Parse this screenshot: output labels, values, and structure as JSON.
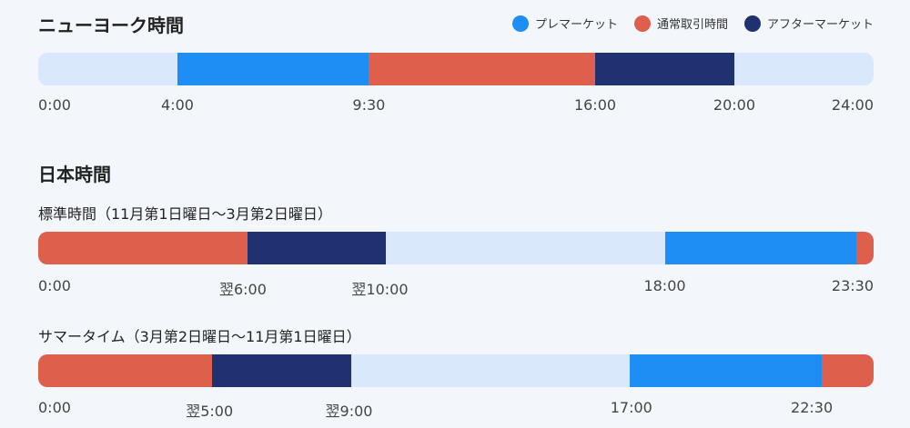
{
  "colors": {
    "pre": "#1e8ef5",
    "regular": "#de5f4b",
    "after": "#1f3170",
    "idle": "#d9e9fb"
  },
  "legend": [
    {
      "key": "pre",
      "label": "プレマーケット"
    },
    {
      "key": "regular",
      "label": "通常取引時間"
    },
    {
      "key": "after",
      "label": "アフターマーケット"
    }
  ],
  "ny": {
    "title": "ニューヨーク時間",
    "ticks": [
      "0:00",
      "4:00",
      "9:30",
      "16:00",
      "20:00",
      "24:00"
    ]
  },
  "japan": {
    "title": "日本時間",
    "standard": {
      "label": "標準時間（11月第1日曜日〜3月第2日曜日）",
      "ticks": [
        "0:00",
        "翌6:00",
        "翌10:00",
        "18:00",
        "23:30"
      ]
    },
    "summer": {
      "label": "サマータイム（3月第2日曜日〜11月第1日曜日）",
      "ticks": [
        "0:00",
        "翌5:00",
        "翌9:00",
        "17:00",
        "22:30"
      ]
    }
  },
  "chart_data": [
    {
      "type": "bar",
      "name": "ニューヨーク時間",
      "unit": "hours",
      "range": [
        0,
        24
      ],
      "segments": [
        {
          "phase": "pre",
          "start": 4,
          "end": 9.5
        },
        {
          "phase": "regular",
          "start": 9.5,
          "end": 16
        },
        {
          "phase": "after",
          "start": 16,
          "end": 20
        }
      ]
    },
    {
      "type": "bar",
      "name": "標準時間",
      "unit": "hours",
      "range": [
        0,
        24
      ],
      "segments": [
        {
          "phase": "regular",
          "start": 0,
          "end": 6
        },
        {
          "phase": "after",
          "start": 6,
          "end": 10
        },
        {
          "phase": "pre",
          "start": 18,
          "end": 23.5
        },
        {
          "phase": "regular",
          "start": 23.5,
          "end": 24
        }
      ]
    },
    {
      "type": "bar",
      "name": "サマータイム",
      "unit": "hours",
      "range": [
        0,
        24
      ],
      "segments": [
        {
          "phase": "regular",
          "start": 0,
          "end": 5
        },
        {
          "phase": "after",
          "start": 5,
          "end": 9
        },
        {
          "phase": "pre",
          "start": 17,
          "end": 22.5
        },
        {
          "phase": "regular",
          "start": 22.5,
          "end": 24
        }
      ]
    }
  ]
}
